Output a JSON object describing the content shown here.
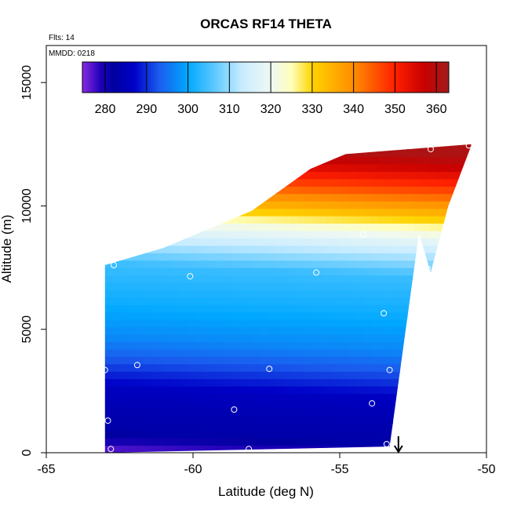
{
  "chart_data": {
    "type": "heatmap",
    "title": "ORCAS RF14 THETA",
    "annotations": {
      "flights": "Flts: 14",
      "date": "MMDD: 0218"
    },
    "xlabel": "Latitude (deg N)",
    "ylabel": "Altitude (m)",
    "xlim": [
      -65,
      -50
    ],
    "ylim": [
      0,
      16500
    ],
    "x_ticks": [
      -65,
      -60,
      -55,
      -50
    ],
    "x_tick_labels": [
      "-65",
      "-60",
      "-55",
      "-50"
    ],
    "y_ticks": [
      0,
      5000,
      10000,
      15000
    ],
    "y_tick_labels": [
      "0",
      "5000",
      "10000",
      "15000"
    ],
    "colorbar": {
      "range": [
        274.5,
        363
      ],
      "ticks": [
        280,
        290,
        300,
        310,
        320,
        330,
        340,
        350,
        360
      ],
      "tick_labels": [
        "280",
        "290",
        "300",
        "310",
        "320",
        "330",
        "340",
        "350",
        "360"
      ],
      "stops": [
        {
          "v": 274.5,
          "color": "#8a2be2"
        },
        {
          "v": 279.0,
          "color": "#1c00b8"
        },
        {
          "v": 282.0,
          "color": "#0000a0"
        },
        {
          "v": 287.0,
          "color": "#0000c8"
        },
        {
          "v": 293.0,
          "color": "#1a5cee"
        },
        {
          "v": 300.0,
          "color": "#00a8ff"
        },
        {
          "v": 307.0,
          "color": "#66ccff"
        },
        {
          "v": 313.0,
          "color": "#c8ecff"
        },
        {
          "v": 320.0,
          "color": "#eef8f4"
        },
        {
          "v": 325.0,
          "color": "#ffffbb"
        },
        {
          "v": 330.0,
          "color": "#ffd400"
        },
        {
          "v": 340.0,
          "color": "#ff8c00"
        },
        {
          "v": 350.0,
          "color": "#ff2000"
        },
        {
          "v": 357.0,
          "color": "#c80000"
        },
        {
          "v": 363.0,
          "color": "#a01c1c"
        }
      ]
    },
    "section": {
      "bottom_left": [
        -63.0,
        0
      ],
      "bottom_right": [
        -53.3,
        250
      ],
      "top_right_edge": [
        [
          -52.3,
          8900
        ],
        [
          -51.9,
          7300
        ],
        [
          -51.3,
          10000
        ],
        [
          -50.5,
          12500
        ]
      ],
      "top_left_edge": [
        [
          -63.0,
          7600
        ],
        [
          -61.0,
          8300
        ],
        [
          -58.0,
          9800
        ],
        [
          -56.0,
          11500
        ],
        [
          -54.8,
          12100
        ]
      ],
      "theta_profile": [
        {
          "alt": 0,
          "theta": 277
        },
        {
          "alt": 700,
          "theta": 283
        },
        {
          "alt": 1500,
          "theta": 284
        },
        {
          "alt": 2500,
          "theta": 286
        },
        {
          "alt": 3500,
          "theta": 292
        },
        {
          "alt": 4500,
          "theta": 297
        },
        {
          "alt": 6000,
          "theta": 301
        },
        {
          "alt": 7500,
          "theta": 304
        },
        {
          "alt": 8500,
          "theta": 313
        },
        {
          "alt": 9300,
          "theta": 322
        },
        {
          "alt": 10000,
          "theta": 333
        },
        {
          "alt": 11000,
          "theta": 346
        },
        {
          "alt": 12000,
          "theta": 357
        },
        {
          "alt": 12500,
          "theta": 361
        }
      ]
    },
    "markers": [
      {
        "lat": -63.0,
        "alt": 3350
      },
      {
        "lat": -62.7,
        "alt": 7600
      },
      {
        "lat": -61.9,
        "alt": 3550
      },
      {
        "lat": -60.1,
        "alt": 7150
      },
      {
        "lat": -58.6,
        "alt": 1750
      },
      {
        "lat": -57.4,
        "alt": 3400
      },
      {
        "lat": -56.3,
        "alt": 12200
      },
      {
        "lat": -55.8,
        "alt": 7300
      },
      {
        "lat": -54.2,
        "alt": 8850
      },
      {
        "lat": -53.9,
        "alt": 2000
      },
      {
        "lat": -53.5,
        "alt": 5650
      },
      {
        "lat": -53.3,
        "alt": 3350
      },
      {
        "lat": -53.4,
        "alt": 350
      },
      {
        "lat": -52.0,
        "alt": 7450
      },
      {
        "lat": -51.9,
        "alt": 12300
      },
      {
        "lat": -50.6,
        "alt": 12450
      },
      {
        "lat": -62.9,
        "alt": 1300
      },
      {
        "lat": -62.8,
        "alt": 150
      },
      {
        "lat": -58.1,
        "alt": 150
      }
    ],
    "arrow": {
      "lat": -53.0
    }
  }
}
